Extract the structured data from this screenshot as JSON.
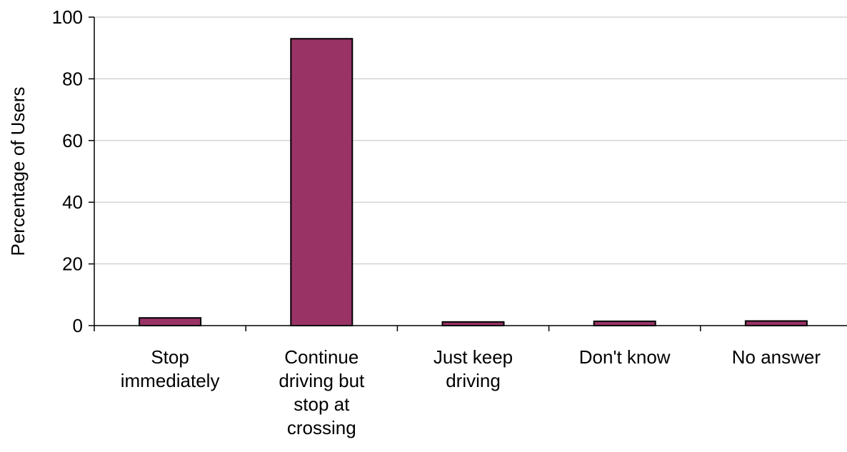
{
  "chart_data": {
    "type": "bar",
    "categories": [
      "Stop immediately",
      "Continue driving but stop at crossing",
      "Just keep driving",
      "Don't know",
      "No answer"
    ],
    "category_label_lines": [
      [
        "Stop",
        "immediately"
      ],
      [
        "Continue",
        "driving but",
        "stop at",
        "crossing"
      ],
      [
        "Just keep",
        "driving"
      ],
      [
        "Don't know"
      ],
      [
        "No answer"
      ]
    ],
    "values": [
      2.5,
      93,
      1.2,
      1.4,
      1.5
    ],
    "ylabel": "Percentage of Users",
    "xlabel": "",
    "ylim": [
      0,
      100
    ],
    "yticks": [
      0,
      20,
      40,
      60,
      80,
      100
    ],
    "grid": true,
    "colors": {
      "bar_fill": "#993366",
      "bar_stroke": "#000000",
      "grid": "#c0c0c0",
      "axis": "#000000"
    }
  }
}
